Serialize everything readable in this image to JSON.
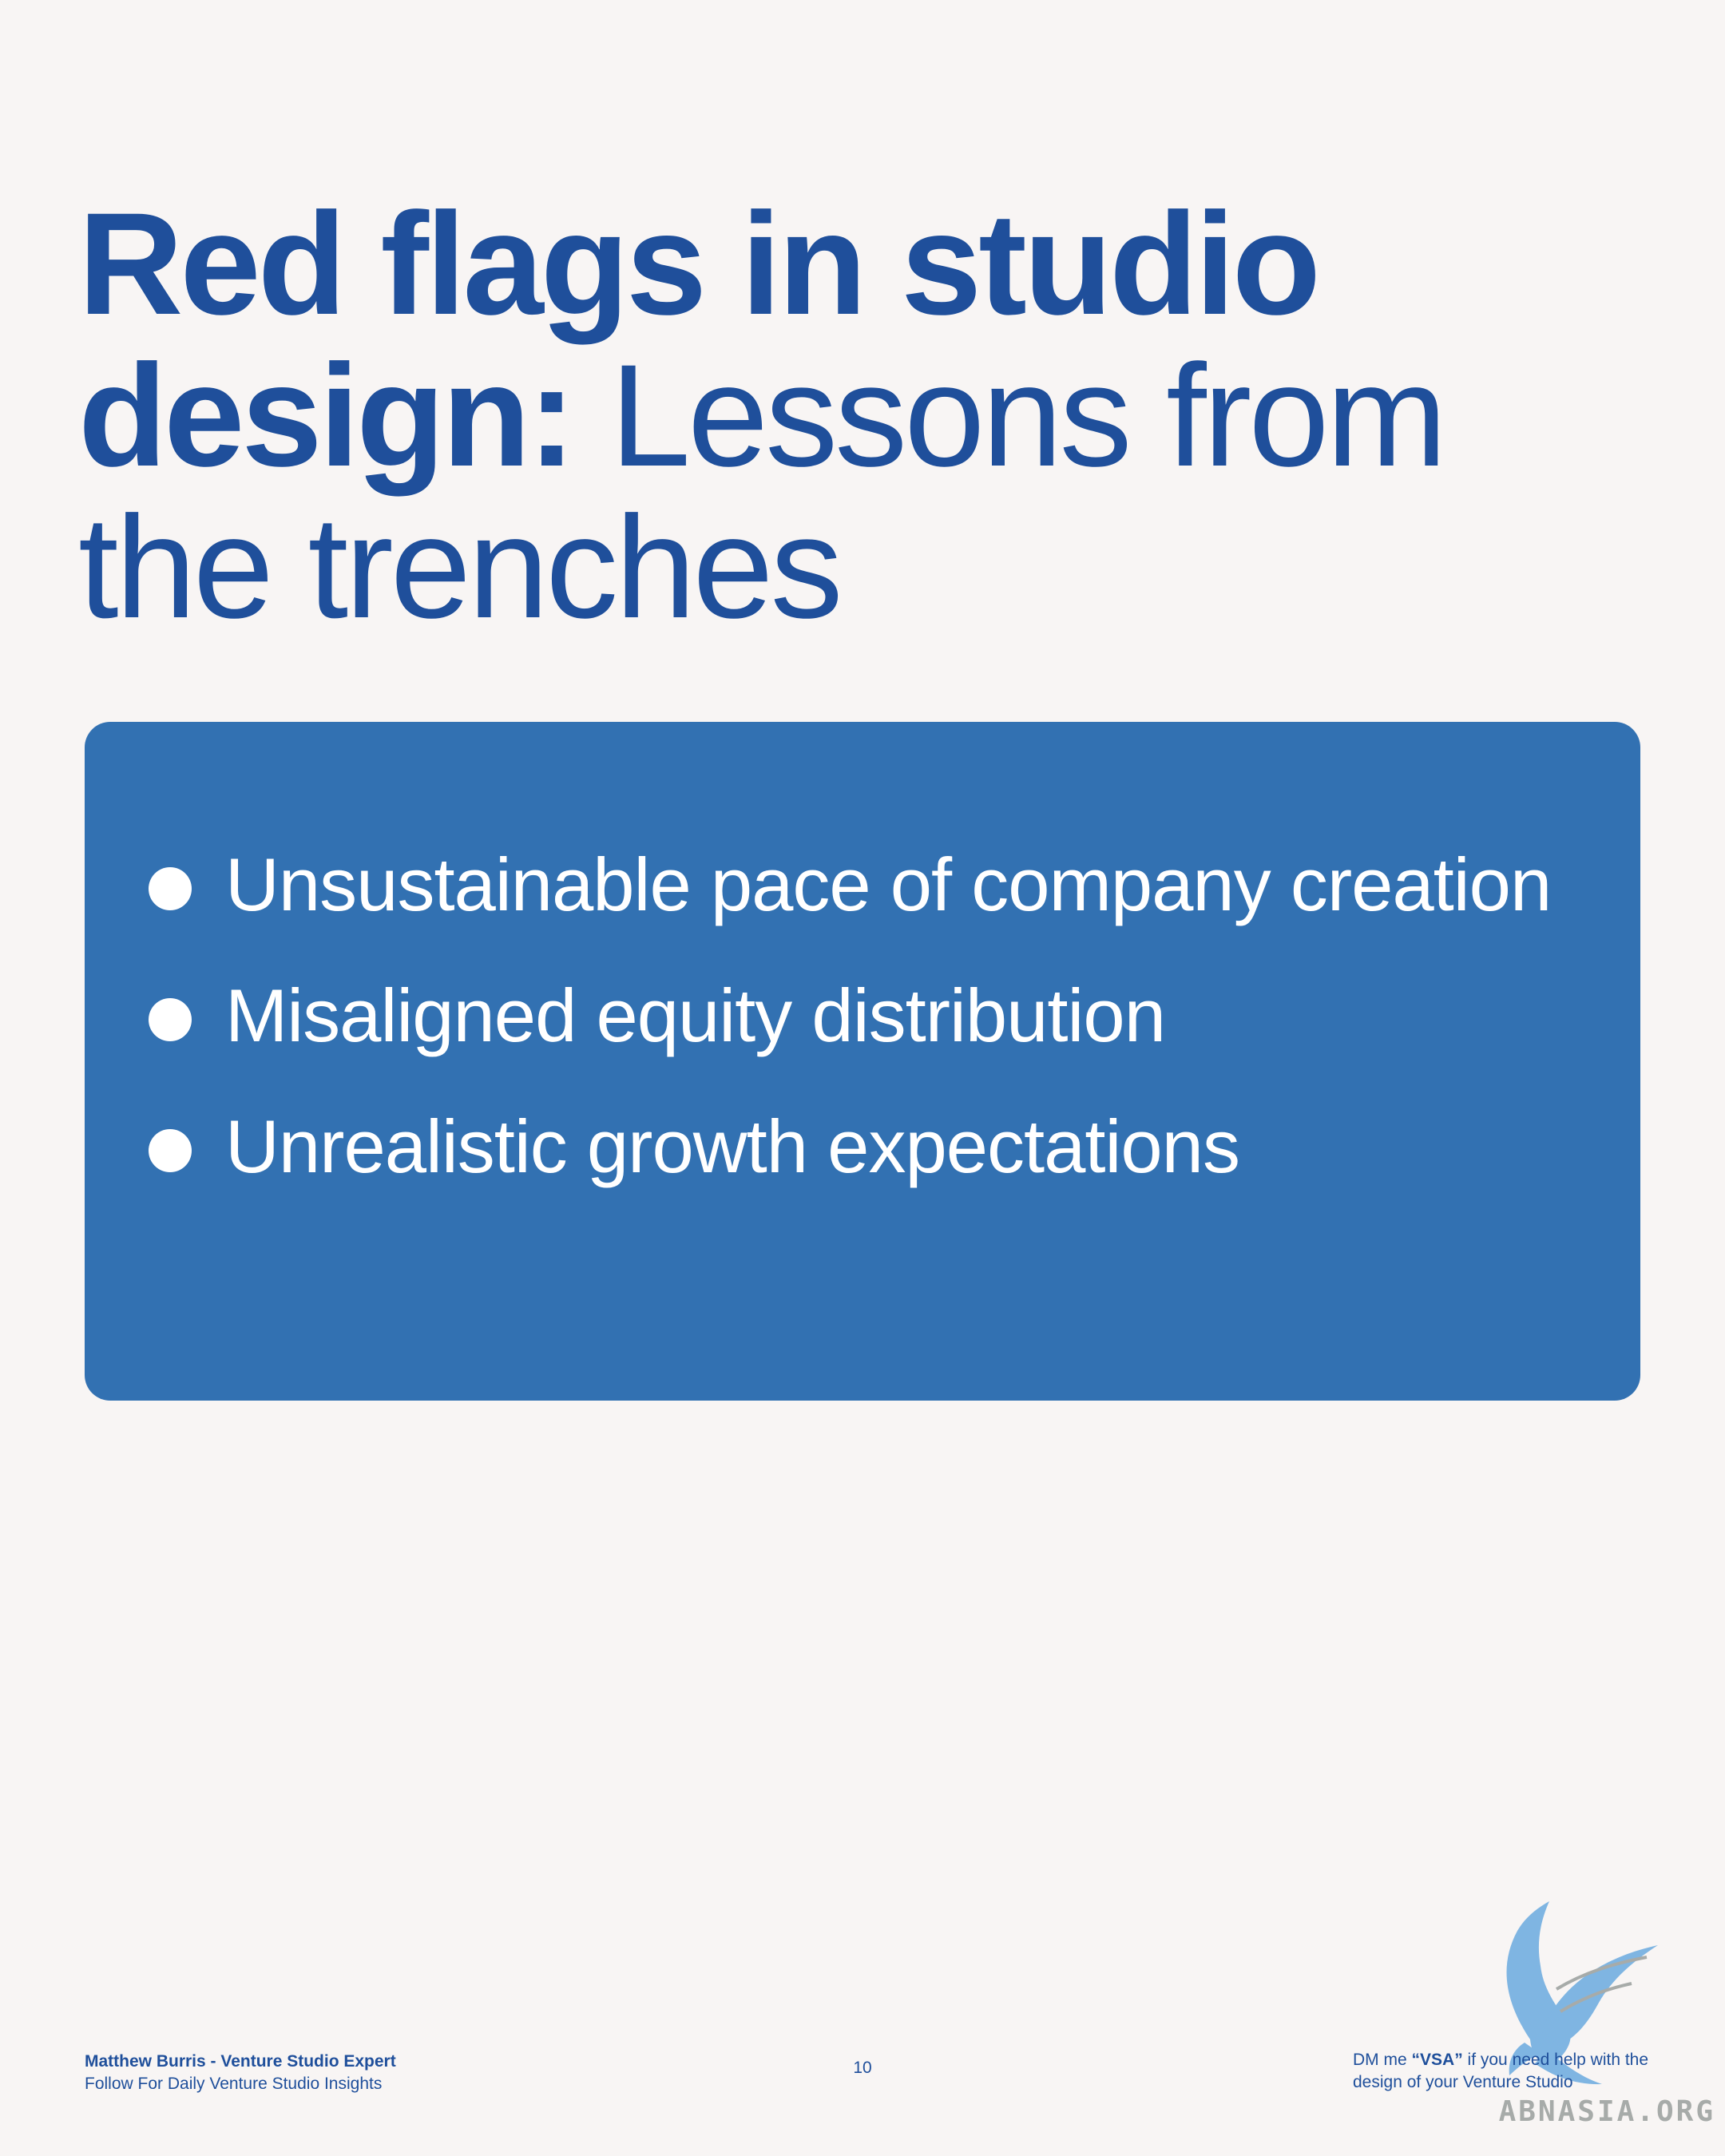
{
  "title": {
    "bold": "Red flags in studio design:",
    "regular": "Lessons from the trenches"
  },
  "card": {
    "bullets": [
      "Unsustainable pace of company creation",
      "Misaligned equity distribution",
      "Unrealistic growth expectations"
    ]
  },
  "footer": {
    "author": "Matthew Burris - Venture Studio Expert",
    "tagline": "Follow For Daily Venture Studio Insights",
    "page_number": "10",
    "cta_prefix": "DM me",
    "cta_keyword": "“VSA”",
    "cta_suffix": "if you need help with the design of your Venture Studio"
  },
  "watermark": {
    "text": "ABNASIA.ORG",
    "icon": "bird-icon"
  },
  "colors": {
    "background": "#f8f5f4",
    "primary": "#1f4f9b",
    "card": "#3271b2",
    "bird": "#7fb5e2"
  }
}
